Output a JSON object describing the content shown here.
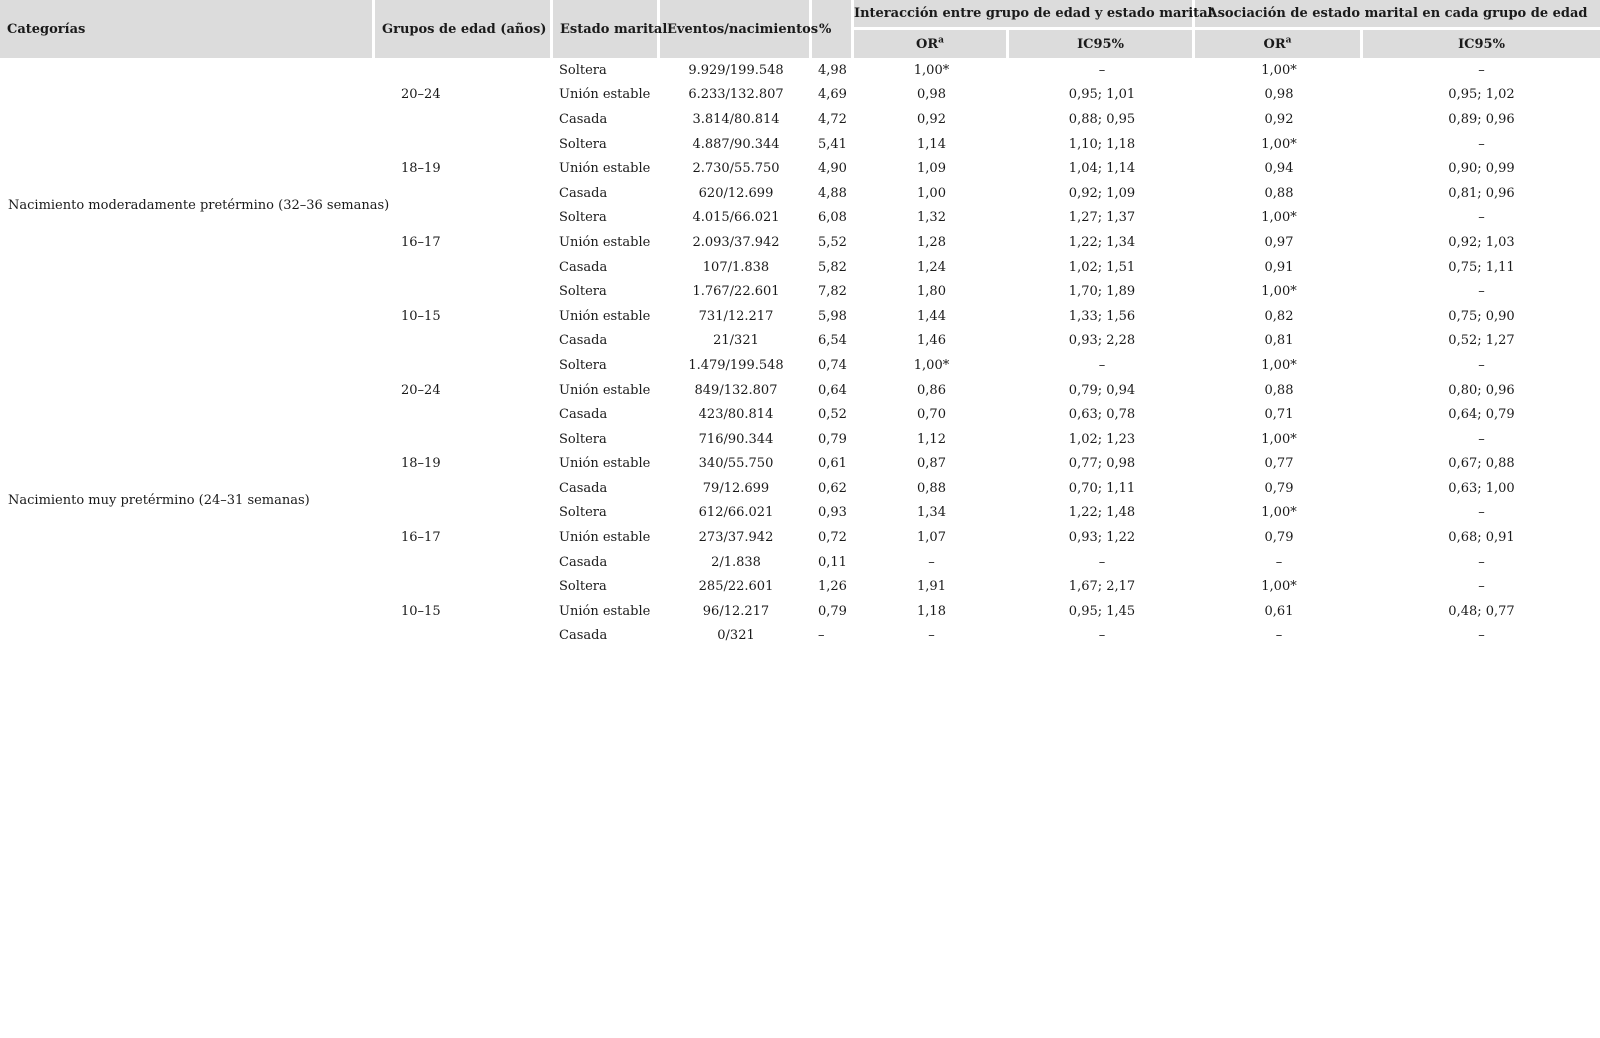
{
  "table": {
    "headers": {
      "categorias": "Categorías",
      "grupos": "Grupos de edad (años)",
      "estado": "Estado marital",
      "eventos": "Eventos/nacimientos",
      "pct": "%",
      "interaccion": "Interacción entre grupo de edad y estado marital",
      "asociacion": "Asociación de estado marital en cada grupo de edad",
      "or_label": "OR",
      "or_sup": "a",
      "ic_label": "IC95%"
    },
    "groups": [
      {
        "category": "Nacimiento moderadamente pretérmino (32–36 semanas)",
        "age_groups": [
          {
            "age": "20–24",
            "rows": [
              {
                "estado": "Soltera",
                "eventos": "9.929/199.548",
                "pct": "4,98",
                "or_interaccion": "1,00*",
                "ic_interaccion": "–",
                "or_asociacion": "1,00*",
                "ic_asociacion": "–"
              },
              {
                "estado": "Unión estable",
                "eventos": "6.233/132.807",
                "pct": "4,69",
                "or_interaccion": "0,98",
                "ic_interaccion": "0,95; 1,01",
                "or_asociacion": "0,98",
                "ic_asociacion": "0,95; 1,02"
              },
              {
                "estado": "Casada",
                "eventos": "3.814/80.814",
                "pct": "4,72",
                "or_interaccion": "0,92",
                "ic_interaccion": "0,88; 0,95",
                "or_asociacion": "0,92",
                "ic_asociacion": "0,89; 0,96"
              }
            ]
          },
          {
            "age": "18–19",
            "rows": [
              {
                "estado": "Soltera",
                "eventos": "4.887/90.344",
                "pct": "5,41",
                "or_interaccion": "1,14",
                "ic_interaccion": "1,10; 1,18",
                "or_asociacion": "1,00*",
                "ic_asociacion": "–"
              },
              {
                "estado": "Unión estable",
                "eventos": "2.730/55.750",
                "pct": "4,90",
                "or_interaccion": "1,09",
                "ic_interaccion": "1,04; 1,14",
                "or_asociacion": "0,94",
                "ic_asociacion": "0,90; 0,99"
              },
              {
                "estado": "Casada",
                "eventos": "620/12.699",
                "pct": "4,88",
                "or_interaccion": "1,00",
                "ic_interaccion": "0,92; 1,09",
                "or_asociacion": "0,88",
                "ic_asociacion": "0,81; 0,96"
              }
            ]
          },
          {
            "age": "16–17",
            "rows": [
              {
                "estado": "Soltera",
                "eventos": "4.015/66.021",
                "pct": "6,08",
                "or_interaccion": "1,32",
                "ic_interaccion": "1,27; 1,37",
                "or_asociacion": "1,00*",
                "ic_asociacion": "–"
              },
              {
                "estado": "Unión estable",
                "eventos": "2.093/37.942",
                "pct": "5,52",
                "or_interaccion": "1,28",
                "ic_interaccion": "1,22; 1,34",
                "or_asociacion": "0,97",
                "ic_asociacion": "0,92; 1,03"
              },
              {
                "estado": "Casada",
                "eventos": "107/1.838",
                "pct": "5,82",
                "or_interaccion": "1,24",
                "ic_interaccion": "1,02; 1,51",
                "or_asociacion": "0,91",
                "ic_asociacion": "0,75; 1,11"
              }
            ]
          },
          {
            "age": "10–15",
            "rows": [
              {
                "estado": "Soltera",
                "eventos": "1.767/22.601",
                "pct": "7,82",
                "or_interaccion": "1,80",
                "ic_interaccion": "1,70; 1,89",
                "or_asociacion": "1,00*",
                "ic_asociacion": "–"
              },
              {
                "estado": "Unión estable",
                "eventos": "731/12.217",
                "pct": "5,98",
                "or_interaccion": "1,44",
                "ic_interaccion": "1,33; 1,56",
                "or_asociacion": "0,82",
                "ic_asociacion": "0,75; 0,90"
              },
              {
                "estado": "Casada",
                "eventos": "21/321",
                "pct": "6,54",
                "or_interaccion": "1,46",
                "ic_interaccion": "0,93; 2,28",
                "or_asociacion": "0,81",
                "ic_asociacion": "0,52; 1,27"
              }
            ]
          }
        ]
      },
      {
        "category": "Nacimiento muy pretérmino (24–31 semanas)",
        "age_groups": [
          {
            "age": "20–24",
            "rows": [
              {
                "estado": "Soltera",
                "eventos": "1.479/199.548",
                "pct": "0,74",
                "or_interaccion": "1,00*",
                "ic_interaccion": "–",
                "or_asociacion": "1,00*",
                "ic_asociacion": "–"
              },
              {
                "estado": "Unión estable",
                "eventos": "849/132.807",
                "pct": "0,64",
                "or_interaccion": "0,86",
                "ic_interaccion": "0,79; 0,94",
                "or_asociacion": "0,88",
                "ic_asociacion": "0,80; 0,96"
              },
              {
                "estado": "Casada",
                "eventos": "423/80.814",
                "pct": "0,52",
                "or_interaccion": "0,70",
                "ic_interaccion": "0,63; 0,78",
                "or_asociacion": "0,71",
                "ic_asociacion": "0,64; 0,79"
              }
            ]
          },
          {
            "age": "18–19",
            "rows": [
              {
                "estado": "Soltera",
                "eventos": "716/90.344",
                "pct": "0,79",
                "or_interaccion": "1,12",
                "ic_interaccion": "1,02; 1,23",
                "or_asociacion": "1,00*",
                "ic_asociacion": "–"
              },
              {
                "estado": "Unión estable",
                "eventos": "340/55.750",
                "pct": "0,61",
                "or_interaccion": "0,87",
                "ic_interaccion": "0,77; 0,98",
                "or_asociacion": "0,77",
                "ic_asociacion": "0,67; 0,88"
              },
              {
                "estado": "Casada",
                "eventos": "79/12.699",
                "pct": "0,62",
                "or_interaccion": "0,88",
                "ic_interaccion": "0,70; 1,11",
                "or_asociacion": "0,79",
                "ic_asociacion": "0,63; 1,00"
              }
            ]
          },
          {
            "age": "16–17",
            "rows": [
              {
                "estado": "Soltera",
                "eventos": "612/66.021",
                "pct": "0,93",
                "or_interaccion": "1,34",
                "ic_interaccion": "1,22; 1,48",
                "or_asociacion": "1,00*",
                "ic_asociacion": "–"
              },
              {
                "estado": "Unión estable",
                "eventos": "273/37.942",
                "pct": "0,72",
                "or_interaccion": "1,07",
                "ic_interaccion": "0,93; 1,22",
                "or_asociacion": "0,79",
                "ic_asociacion": "0,68; 0,91"
              },
              {
                "estado": "Casada",
                "eventos": "2/1.838",
                "pct": "0,11",
                "or_interaccion": "–",
                "ic_interaccion": "–",
                "or_asociacion": "–",
                "ic_asociacion": "–"
              }
            ]
          },
          {
            "age": "10–15",
            "rows": [
              {
                "estado": "Soltera",
                "eventos": "285/22.601",
                "pct": "1,26",
                "or_interaccion": "1,91",
                "ic_interaccion": "1,67; 2,17",
                "or_asociacion": "1,00*",
                "ic_asociacion": "–"
              },
              {
                "estado": "Unión estable",
                "eventos": "96/12.217",
                "pct": "0,79",
                "or_interaccion": "1,18",
                "ic_interaccion": "0,95; 1,45",
                "or_asociacion": "0,61",
                "ic_asociacion": "0,48; 0,77"
              },
              {
                "estado": "Casada",
                "eventos": "0/321",
                "pct": "–",
                "or_interaccion": "–",
                "ic_interaccion": "–",
                "or_asociacion": "–",
                "ic_asociacion": "–"
              }
            ]
          }
        ]
      }
    ]
  },
  "colors": {
    "header_bg": "#dcdcdc",
    "separator": "#ffffff",
    "text": "#1a1a1a",
    "page_bg": "#ffffff"
  }
}
